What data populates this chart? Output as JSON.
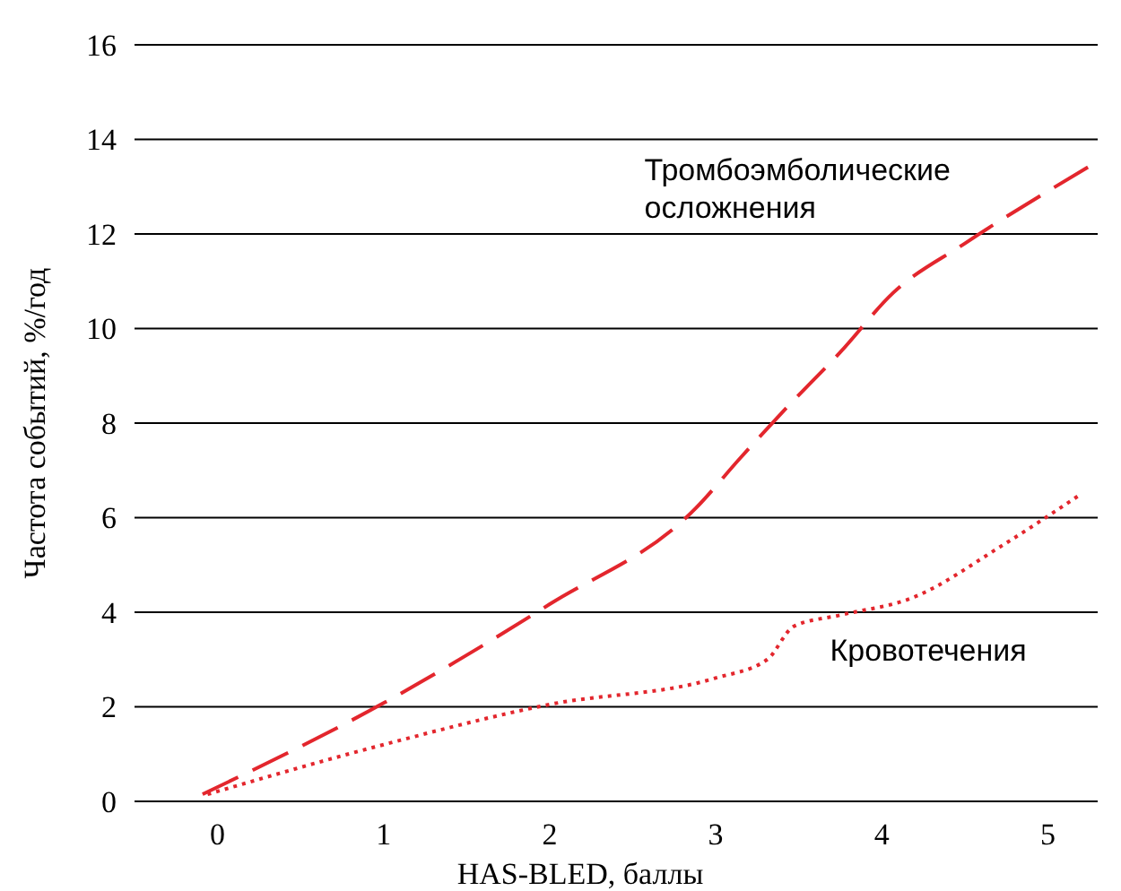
{
  "chart_data": {
    "type": "line",
    "xlabel": "HAS-BLED, баллы",
    "ylabel": "Частота событий, %/год",
    "xlim": [
      -0.5,
      5.3
    ],
    "xticks": [
      0,
      1,
      2,
      3,
      4,
      5
    ],
    "ylim": [
      0,
      16
    ],
    "yticks": [
      0,
      2,
      4,
      6,
      8,
      10,
      12,
      14,
      16
    ],
    "grid": "y",
    "series": [
      {
        "name": "Тромбоэмболические\nосложнения",
        "color": "#e3262d",
        "line_style": "dashed",
        "x": [
          -0.09,
          1,
          2,
          2.88,
          3.15,
          3.42,
          3.75,
          4.07,
          4.5,
          5.26
        ],
        "values": [
          0.15,
          2.08,
          4.17,
          6.2,
          7.27,
          8.3,
          9.5,
          10.76,
          11.8,
          13.45
        ]
      },
      {
        "name": "Кровотечения",
        "color": "#e3262d",
        "line_style": "dotted",
        "x": [
          -0.06,
          1,
          2,
          2.99,
          3.31,
          3.47,
          3.75,
          4.18,
          4.72,
          5.2
        ],
        "values": [
          0.15,
          1.2,
          2.05,
          2.6,
          3.0,
          3.7,
          3.94,
          4.3,
          5.4,
          6.5
        ]
      }
    ]
  }
}
